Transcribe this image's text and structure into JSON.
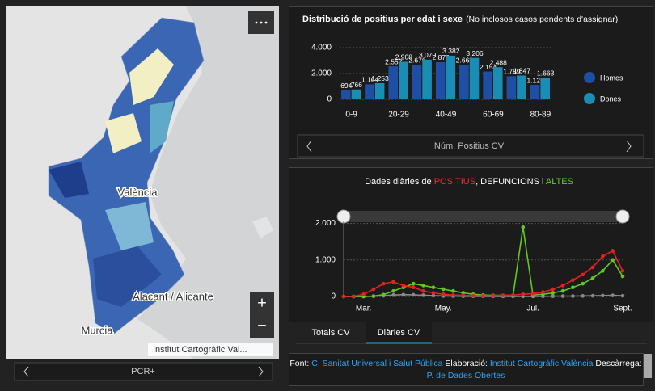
{
  "map": {
    "labels": [
      "València",
      "Alacant / Alicante",
      "Murcia"
    ],
    "attribution": "Institut Cartogràfic Val...",
    "zoom_in": "+",
    "zoom_out": "−",
    "nav_label": "PCR+"
  },
  "chart_data": [
    {
      "type": "bar",
      "title": "Distribució de positius per edat i sexe",
      "subtitle": "(No inclosos casos pendents d'assignar)",
      "caption": "Núm. Positius CV",
      "categories": [
        "0-9",
        null,
        "20-29",
        null,
        "40-49",
        null,
        "60-69",
        null,
        "80-89"
      ],
      "series": [
        {
          "name": "Homes",
          "color": "#1f4fa5",
          "values": [
            694,
            1164,
            2557,
            2676,
            2876,
            2668,
            2154,
            1789,
            1122
          ],
          "value_labels": [
            "694",
            "1.164",
            "2.557",
            "2.676",
            "2.876",
            "2.668",
            "2.154",
            "1.789",
            "1.122"
          ]
        },
        {
          "name": "Dones",
          "color": "#1a8db5",
          "values": [
            766,
            1253,
            2908,
            3070,
            3382,
            3206,
            2488,
            1847,
            1663
          ],
          "value_labels": [
            "766",
            "1.253",
            "2.908",
            "3.070",
            "3.382",
            "3.206",
            "2.488",
            "1.847",
            "1.663"
          ]
        }
      ],
      "ylim": [
        0,
        4000
      ],
      "yticks": [
        0,
        {
          "value": 2000,
          "label": "2.000"
        },
        {
          "value": 4000,
          "label": "4.000"
        }
      ],
      "grid": true,
      "legend": "right"
    },
    {
      "type": "line",
      "title_parts": [
        {
          "text": "Dades diàries de ",
          "color": "#ffffff"
        },
        {
          "text": "POSITIUS",
          "color": "#ff2a2a"
        },
        {
          "text": ", DEFUNCIONS i ",
          "color": "#ffffff"
        },
        {
          "text": "ALTES",
          "color": "#5ed21f"
        }
      ],
      "categories": [
        null,
        null,
        "Mar.",
        null,
        null,
        null,
        null,
        null,
        null,
        null,
        "May.",
        null,
        null,
        null,
        null,
        null,
        null,
        null,
        null,
        "Jul.",
        null,
        null,
        null,
        null,
        null,
        null,
        null,
        null,
        "Sept."
      ],
      "series": [
        {
          "name": "POSITIUS",
          "color": "#e52222",
          "values": [
            0,
            5,
            60,
            200,
            350,
            400,
            300,
            250,
            150,
            100,
            60,
            40,
            30,
            20,
            15,
            20,
            30,
            40,
            60,
            80,
            120,
            200,
            300,
            450,
            600,
            800,
            1100,
            1250,
            700
          ]
        },
        {
          "name": "ALTES",
          "color": "#62c81f",
          "values": [
            0,
            0,
            0,
            10,
            50,
            150,
            250,
            350,
            300,
            250,
            200,
            150,
            100,
            60,
            40,
            30,
            30,
            30,
            1900,
            40,
            60,
            100,
            150,
            250,
            350,
            500,
            700,
            1000,
            550
          ]
        },
        {
          "name": "DEFUNCIONS",
          "color": "#8a8a8a",
          "values": [
            0,
            0,
            0,
            5,
            20,
            40,
            50,
            45,
            35,
            25,
            15,
            10,
            5,
            5,
            3,
            2,
            2,
            2,
            2,
            3,
            5,
            8,
            10,
            12,
            15,
            20,
            25,
            30,
            20
          ]
        }
      ],
      "ylim": [
        0,
        2300
      ],
      "yticks": [
        0,
        {
          "value": 1000,
          "label": "1.000"
        },
        {
          "value": 2000,
          "label": "2.000"
        }
      ],
      "grid": true
    }
  ],
  "tabs": [
    "Totals CV",
    "Diàries CV"
  ],
  "footer": {
    "parts": [
      {
        "text": "Font: ",
        "link": false
      },
      {
        "text": "C. Sanitat Universal i Salut Pública",
        "link": true
      },
      {
        "text": " Elaboració: ",
        "link": false
      },
      {
        "text": "Institut Cartogràfic València",
        "link": true
      },
      {
        "text": " Descàrrega: ",
        "link": false
      },
      {
        "text": "P. de Dades Obertes",
        "link": true
      }
    ]
  }
}
